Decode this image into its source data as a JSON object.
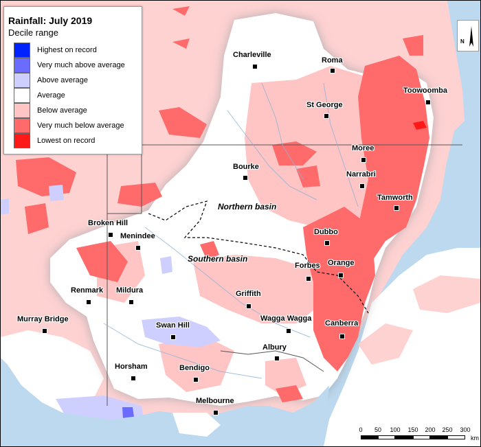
{
  "legend": {
    "title": "Rainfall: July 2019",
    "subtitle": "Decile range",
    "items": [
      {
        "label": "Highest on record",
        "color": "#0022ff"
      },
      {
        "label": "Very much above average",
        "color": "#6b6bff"
      },
      {
        "label": "Above average",
        "color": "#cfcfff"
      },
      {
        "label": "Average",
        "color": "#ffffff"
      },
      {
        "label": "Below average",
        "color": "#ffc4c4"
      },
      {
        "label": "Very much below average",
        "color": "#ff6a6a"
      },
      {
        "label": "Lowest on record",
        "color": "#ff1a1a"
      }
    ]
  },
  "towns": [
    {
      "name": "Charleville"
    },
    {
      "name": "Roma"
    },
    {
      "name": "Toowoomba"
    },
    {
      "name": "St George"
    },
    {
      "name": "Moree"
    },
    {
      "name": "Bourke"
    },
    {
      "name": "Narrabri"
    },
    {
      "name": "Tamworth"
    },
    {
      "name": "Broken Hill"
    },
    {
      "name": "Menindee"
    },
    {
      "name": "Dubbo"
    },
    {
      "name": "Orange"
    },
    {
      "name": "Forbes"
    },
    {
      "name": "Renmark"
    },
    {
      "name": "Mildura"
    },
    {
      "name": "Griffith"
    },
    {
      "name": "Murray Bridge"
    },
    {
      "name": "Wagga Wagga"
    },
    {
      "name": "Canberra"
    },
    {
      "name": "Swan Hill"
    },
    {
      "name": "Albury"
    },
    {
      "name": "Horsham"
    },
    {
      "name": "Bendigo"
    },
    {
      "name": "Melbourne"
    }
  ],
  "basins": [
    "Northern basin",
    "Southern basin"
  ],
  "scale": {
    "ticks": [
      "0",
      "50",
      "100",
      "150",
      "200",
      "250",
      "300"
    ],
    "unit": "km"
  },
  "north": {
    "letter": "N"
  }
}
